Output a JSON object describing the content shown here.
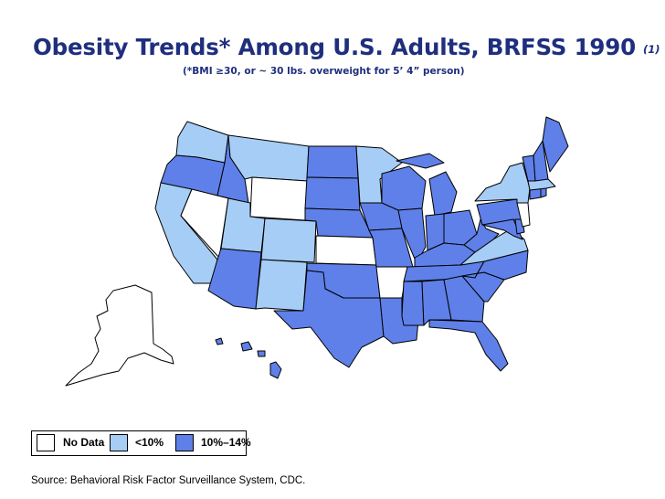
{
  "title": "Obesity Trends* Among U.S. Adults, BRFSS 1990",
  "title_note": "(1)",
  "subtitle": "(*BMI ≥30, or ~ 30 lbs. overweight for 5’ 4” person)",
  "legend": [
    {
      "label": "No Data",
      "color": "#ffffff"
    },
    {
      "label": "<10%",
      "color": "#a6cdf5"
    },
    {
      "label": "10%–14%",
      "color": "#5f80e8"
    }
  ],
  "source": "Source: Behavioral Risk Factor Surveillance System, CDC.",
  "colors": {
    "title": "#1f2f7e",
    "border": "#000000"
  },
  "chart_data": {
    "type": "choropleth",
    "year": 1990,
    "categories": [
      "No Data",
      "<10%",
      "10%–14%"
    ],
    "states": {
      "No Data": [
        "NV",
        "WY",
        "KS",
        "AR",
        "AK",
        "NJ"
      ],
      "<10%": [
        "WA",
        "MT",
        "CA",
        "UT",
        "CO",
        "NM",
        "MN",
        "VA",
        "NY",
        "MA"
      ],
      "10%–14%": [
        "OR",
        "ID",
        "AZ",
        "ND",
        "SD",
        "NE",
        "OK",
        "TX",
        "IA",
        "MO",
        "LA",
        "WI",
        "IL",
        "MI",
        "IN",
        "OH",
        "KY",
        "TN",
        "MS",
        "AL",
        "GA",
        "FL",
        "SC",
        "NC",
        "WV",
        "PA",
        "MD",
        "DE",
        "ME",
        "NH",
        "VT",
        "CT",
        "RI",
        "HI"
      ]
    }
  }
}
